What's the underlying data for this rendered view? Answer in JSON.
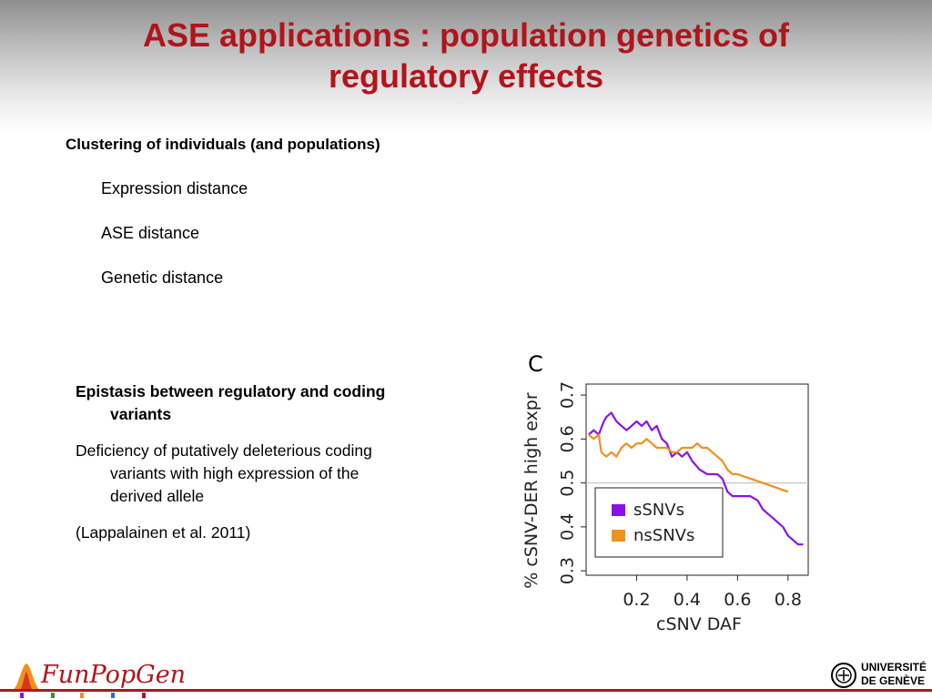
{
  "title": {
    "line1": "ASE applications : population genetics of",
    "line2": "regulatory effects"
  },
  "section1": {
    "heading": "Clustering of individuals (and populations)",
    "items": [
      "Expression distance",
      "ASE distance",
      "Genetic distance"
    ]
  },
  "section2": {
    "heading_line1": "Epistasis between regulatory and coding",
    "heading_line2": "variants",
    "body_line1": "Deficiency of putatively deleterious coding",
    "body_line2": "variants with high expression of the",
    "body_line3": "derived allele",
    "citation": "(Lappalainen et al. 2011)"
  },
  "chart_data": {
    "type": "line",
    "panel_label": "C",
    "xlabel": "cSNV DAF",
    "ylabel": "% cSNV-DER high expr",
    "xlim": [
      0.0,
      0.88
    ],
    "ylim": [
      0.29,
      0.725
    ],
    "x_ticks": [
      "0.2",
      "0.4",
      "0.6",
      "0.8"
    ],
    "y_ticks": [
      "0.3",
      "0.4",
      "0.5",
      "0.6",
      "0.7"
    ],
    "reference_line": 0.5,
    "legend_position": "bottom-left",
    "series": [
      {
        "name": "sSNVs",
        "color": "#8a12e6",
        "x": [
          0.01,
          0.03,
          0.05,
          0.07,
          0.08,
          0.1,
          0.12,
          0.14,
          0.16,
          0.18,
          0.2,
          0.22,
          0.24,
          0.26,
          0.28,
          0.3,
          0.32,
          0.34,
          0.36,
          0.38,
          0.4,
          0.42,
          0.45,
          0.48,
          0.5,
          0.52,
          0.54,
          0.56,
          0.58,
          0.6,
          0.62,
          0.65,
          0.68,
          0.7,
          0.72,
          0.74,
          0.76,
          0.78,
          0.8,
          0.82,
          0.84,
          0.86
        ],
        "y": [
          0.61,
          0.62,
          0.61,
          0.64,
          0.65,
          0.66,
          0.64,
          0.63,
          0.62,
          0.63,
          0.64,
          0.63,
          0.64,
          0.62,
          0.63,
          0.6,
          0.59,
          0.56,
          0.57,
          0.56,
          0.57,
          0.55,
          0.53,
          0.52,
          0.52,
          0.52,
          0.51,
          0.48,
          0.47,
          0.47,
          0.47,
          0.47,
          0.46,
          0.44,
          0.43,
          0.42,
          0.41,
          0.4,
          0.38,
          0.37,
          0.36,
          0.36
        ]
      },
      {
        "name": "nsSNVs",
        "color": "#f0901e",
        "x": [
          0.01,
          0.03,
          0.05,
          0.06,
          0.08,
          0.1,
          0.12,
          0.14,
          0.16,
          0.18,
          0.2,
          0.22,
          0.24,
          0.26,
          0.28,
          0.3,
          0.32,
          0.34,
          0.36,
          0.38,
          0.4,
          0.42,
          0.44,
          0.46,
          0.48,
          0.5,
          0.52,
          0.54,
          0.56,
          0.58,
          0.6,
          0.65,
          0.7,
          0.75,
          0.8
        ],
        "y": [
          0.61,
          0.6,
          0.61,
          0.57,
          0.56,
          0.57,
          0.56,
          0.58,
          0.59,
          0.58,
          0.59,
          0.59,
          0.6,
          0.59,
          0.58,
          0.58,
          0.58,
          0.57,
          0.57,
          0.58,
          0.58,
          0.58,
          0.59,
          0.58,
          0.58,
          0.57,
          0.56,
          0.55,
          0.53,
          0.52,
          0.52,
          0.51,
          0.5,
          0.49,
          0.48
        ]
      }
    ]
  },
  "footer": {
    "logo_left": "FunPopGen",
    "logo_right_line1": "UNIVERSITÉ",
    "logo_right_line2": "DE GENÈVE"
  },
  "colors": {
    "title": "#b0151c",
    "accent": "#b0151c"
  }
}
